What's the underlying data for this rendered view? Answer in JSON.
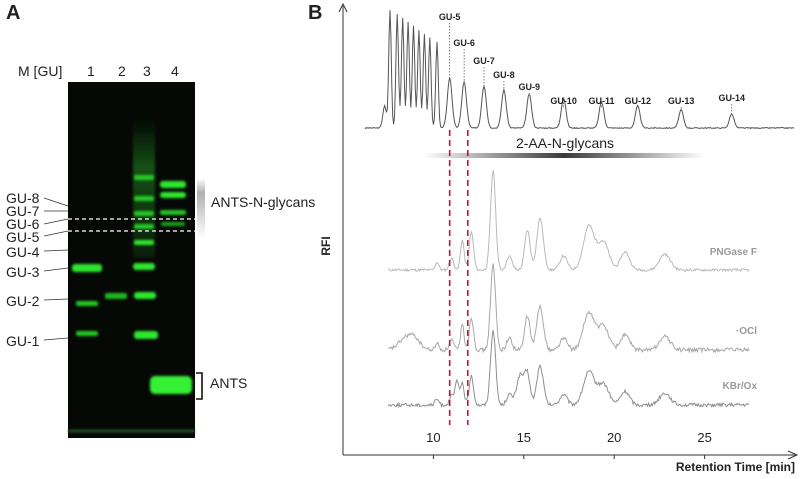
{
  "panel_a": {
    "letter": "A",
    "lane_header": {
      "marker": "M [GU]",
      "lanes": [
        "1",
        "2",
        "3",
        "4"
      ]
    },
    "gu_labels": [
      "GU-8",
      "GU-7",
      "GU-6",
      "GU-5",
      "GU-4",
      "GU-3",
      "GU-2",
      "GU-1"
    ],
    "annotations": {
      "glycans": "ANTS-N-glycans",
      "ants": "ANTS"
    },
    "colors": {
      "gel_background": "#060806",
      "band": "#2ee62e"
    }
  },
  "panel_b": {
    "letter": "B",
    "chart_data": {
      "type": "line",
      "xlabel": "Retention Time [min]",
      "ylabel": "RFI",
      "xlim": [
        5,
        30
      ],
      "xticks": [
        10,
        15,
        20,
        25
      ],
      "ladder_labels": [
        "GU-5",
        "GU-6",
        "GU-7",
        "GU-8",
        "GU-9",
        "GU-10",
        "GU-11",
        "GU-12",
        "GU-13",
        "GU-14"
      ],
      "ladder_times": [
        10.9,
        11.7,
        12.8,
        13.9,
        15.3,
        17.2,
        19.3,
        21.3,
        23.7,
        26.5
      ],
      "band_label": "2-AA-N-glycans",
      "dashed_lines_x": [
        10.9,
        11.9
      ],
      "series": [
        {
          "name": "PNGase F",
          "color": "#b9b9b9"
        },
        {
          "name": "·OCl",
          "color": "#a8a8a8"
        },
        {
          "name": "KBr/Ox",
          "color": "#8f8f8f"
        }
      ],
      "colors": {
        "ladder": "#555555",
        "dashed": "#c8102e"
      }
    }
  }
}
